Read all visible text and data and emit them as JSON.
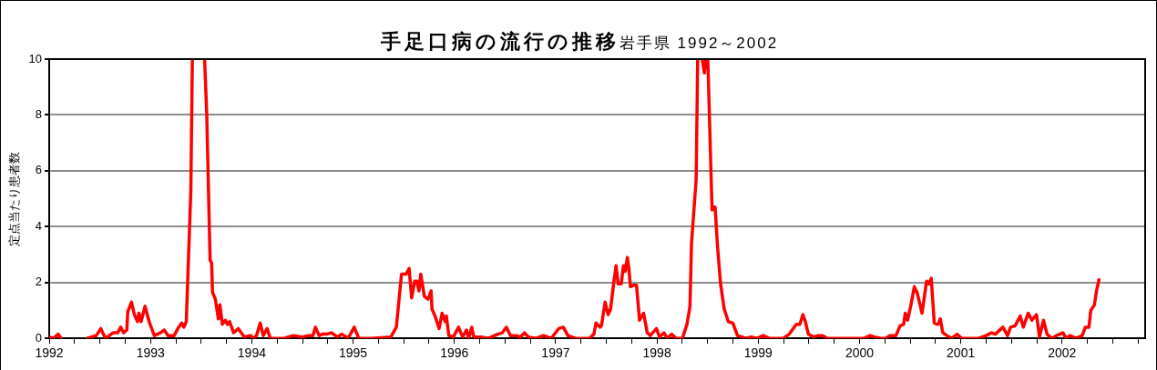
{
  "chart_data": {
    "type": "line",
    "title": "手足口病の流行の推移",
    "subtitle": "岩手県 1992～2002",
    "ylabel": "定点当たり患者数",
    "xlim": [
      1992,
      2002.82
    ],
    "xticks": [
      1992,
      {
        "value": 1992.25,
        "label": null
      },
      {
        "value": 1992.5,
        "label": null
      },
      {
        "value": 1992.75,
        "label": null
      },
      1993,
      {
        "value": 1993.25,
        "label": null
      },
      {
        "value": 1993.5,
        "label": null
      },
      {
        "value": 1993.75,
        "label": null
      },
      1994,
      {
        "value": 1994.25,
        "label": null
      },
      {
        "value": 1994.5,
        "label": null
      },
      {
        "value": 1994.75,
        "label": null
      },
      1995,
      {
        "value": 1995.25,
        "label": null
      },
      {
        "value": 1995.5,
        "label": null
      },
      {
        "value": 1995.75,
        "label": null
      },
      1996,
      {
        "value": 1996.25,
        "label": null
      },
      {
        "value": 1996.5,
        "label": null
      },
      {
        "value": 1996.75,
        "label": null
      },
      1997,
      {
        "value": 1997.25,
        "label": null
      },
      {
        "value": 1997.5,
        "label": null
      },
      {
        "value": 1997.75,
        "label": null
      },
      1998,
      {
        "value": 1998.25,
        "label": null
      },
      {
        "value": 1998.5,
        "label": null
      },
      {
        "value": 1998.75,
        "label": null
      },
      1999,
      {
        "value": 1999.25,
        "label": null
      },
      {
        "value": 1999.5,
        "label": null
      },
      {
        "value": 1999.75,
        "label": null
      },
      2000,
      {
        "value": 2000.25,
        "label": null
      },
      {
        "value": 2000.5,
        "label": null
      },
      {
        "value": 2000.75,
        "label": null
      },
      2001,
      {
        "value": 2001.25,
        "label": null
      },
      {
        "value": 2001.5,
        "label": null
      },
      {
        "value": 2001.75,
        "label": null
      },
      2002,
      {
        "value": 2002.25,
        "label": null
      },
      {
        "value": 2002.5,
        "label": null
      },
      {
        "value": 2002.75,
        "label": null
      }
    ],
    "ylim": [
      0,
      10
    ],
    "yticks": [
      0,
      2,
      4,
      6,
      8,
      10
    ],
    "grid": "y",
    "legend": false,
    "marker": "none",
    "line_style": "solid",
    "x": [
      1992.0,
      1992.042,
      1992.087,
      1992.118,
      1992.2,
      1992.374,
      1992.464,
      1992.509,
      1992.555,
      1992.63,
      1992.675,
      1992.705,
      1992.735,
      1992.766,
      1992.775,
      1992.811,
      1992.841,
      1992.871,
      1992.886,
      1992.907,
      1992.946,
      1992.986,
      1993.037,
      1993.097,
      1993.136,
      1993.172,
      1993.233,
      1993.278,
      1993.308,
      1993.329,
      1993.353,
      1993.398,
      1993.413,
      1993.45,
      1993.534,
      1993.555,
      1993.588,
      1993.603,
      1993.612,
      1993.64,
      1993.67,
      1993.685,
      1993.709,
      1993.739,
      1993.76,
      1993.781,
      1993.82,
      1993.866,
      1993.926,
      1993.986,
      1994.016,
      1994.046,
      1994.083,
      1994.113,
      1994.152,
      1994.182,
      1994.242,
      1994.318,
      1994.408,
      1994.498,
      1994.559,
      1994.604,
      1994.628,
      1994.664,
      1994.694,
      1994.74,
      1994.785,
      1994.845,
      1994.89,
      1994.951,
      1995.011,
      1995.056,
      1995.177,
      1995.373,
      1995.427,
      1995.478,
      1995.523,
      1995.553,
      1995.578,
      1995.608,
      1995.629,
      1995.65,
      1995.668,
      1995.704,
      1995.74,
      1995.77,
      1995.779,
      1995.809,
      1995.849,
      1995.879,
      1995.909,
      1995.921,
      1995.945,
      1995.99,
      1996.041,
      1996.081,
      1996.12,
      1996.141,
      1996.171,
      1996.192,
      1996.262,
      1996.337,
      1996.428,
      1996.473,
      1996.513,
      1996.554,
      1996.608,
      1996.653,
      1996.693,
      1996.729,
      1996.804,
      1996.88,
      1996.955,
      1997.03,
      1997.075,
      1997.121,
      1997.196,
      1997.332,
      1997.377,
      1997.398,
      1997.437,
      1997.452,
      1997.488,
      1997.518,
      1997.542,
      1997.572,
      1997.596,
      1997.617,
      1997.647,
      1997.669,
      1997.687,
      1997.708,
      1997.723,
      1997.738,
      1997.768,
      1997.798,
      1997.828,
      1997.868,
      1997.904,
      1997.934,
      1997.995,
      1998.025,
      1998.07,
      1998.1,
      1998.145,
      1998.191,
      1998.251,
      1998.296,
      1998.326,
      1998.341,
      1998.387,
      1998.402,
      1998.42,
      1998.447,
      1998.468,
      1998.484,
      1998.49,
      1998.502,
      1998.544,
      1998.559,
      1998.574,
      1998.598,
      1998.628,
      1998.664,
      1998.704,
      1998.749,
      1998.795,
      1998.84,
      1998.87,
      1998.93,
      1998.99,
      1999.049,
      1999.11,
      1999.17,
      1999.245,
      1999.306,
      1999.375,
      1999.411,
      1999.441,
      1999.465,
      1999.495,
      1999.547,
      1999.591,
      1999.637,
      1999.682,
      1999.773,
      1999.863,
      1999.954,
      2000.044,
      2000.104,
      2000.149,
      2000.21,
      2000.255,
      2000.3,
      2000.36,
      2000.4,
      2000.436,
      2000.451,
      2000.475,
      2000.505,
      2000.541,
      2000.572,
      2000.617,
      2000.662,
      2000.686,
      2000.708,
      2000.738,
      2000.774,
      2000.798,
      2000.822,
      2000.864,
      2000.909,
      2000.963,
      2001.008,
      2001.098,
      2001.175,
      2001.25,
      2001.304,
      2001.34,
      2001.416,
      2001.461,
      2001.491,
      2001.536,
      2001.587,
      2001.617,
      2001.665,
      2001.702,
      2001.747,
      2001.777,
      2001.816,
      2001.852,
      2001.898,
      2001.943,
      2002.009,
      2002.039,
      2002.078,
      2002.139,
      2002.199,
      2002.229,
      2002.265,
      2002.283,
      2002.319,
      2002.34,
      2002.364
    ],
    "series": [
      {
        "color": "#ff0000",
        "values": [
          0.05,
          0,
          0.15,
          0,
          null,
          0,
          0.1,
          0.35,
          0,
          0.2,
          0.2,
          0.4,
          0.2,
          0.3,
          0.95,
          1.3,
          0.85,
          0.6,
          0.9,
          0.6,
          1.15,
          0.6,
          0.1,
          0.2,
          0.3,
          0.1,
          0.1,
          0.4,
          0.55,
          0.4,
          0.6,
          5.3,
          10,
          null,
          10,
          8.0,
          2.8,
          2.7,
          1.65,
          1.4,
          0.7,
          1.2,
          0.5,
          0.65,
          0.5,
          0.6,
          0.2,
          0.35,
          0.05,
          0.1,
          0,
          0.1,
          0.55,
          0.1,
          0.35,
          0,
          0,
          0,
          0.1,
          0.05,
          0.1,
          0.1,
          0.4,
          0.1,
          0.15,
          0.15,
          0.2,
          0.05,
          0.15,
          0,
          0.4,
          0,
          0,
          0.05,
          0.4,
          2.3,
          2.3,
          2.5,
          1.45,
          2.05,
          2.05,
          1.7,
          2.3,
          1.5,
          1.4,
          1.7,
          1.05,
          0.8,
          0.35,
          0.9,
          0.6,
          0.8,
          0.1,
          0.05,
          0.4,
          0.05,
          0.3,
          0,
          0.4,
          0.05,
          0.05,
          0,
          0.15,
          0.2,
          0.4,
          0.1,
          0.1,
          0.05,
          0.2,
          0.05,
          0,
          0.1,
          0,
          0.35,
          0.4,
          0.1,
          0,
          0,
          0.15,
          0.55,
          0.4,
          0.45,
          1.3,
          0.85,
          1.05,
          1.95,
          2.6,
          1.95,
          1.95,
          2.6,
          2.4,
          2.9,
          2.5,
          1.85,
          1.9,
          1.9,
          0.65,
          0.9,
          0.2,
          0.1,
          0.35,
          0.05,
          0.2,
          0,
          0.15,
          0,
          0,
          0.5,
          1.15,
          3.4,
          5.7,
          10,
          null,
          10,
          9.5,
          10,
          null,
          10,
          4.6,
          4.7,
          4.7,
          3.3,
          1.95,
          1.05,
          0.6,
          0.55,
          0.1,
          0.05,
          0,
          0.05,
          0,
          0.1,
          0,
          0,
          0,
          0.15,
          0.5,
          0.5,
          0.85,
          0.6,
          0.15,
          0.05,
          0.1,
          0.1,
          0,
          0,
          0,
          0,
          0,
          0.1,
          0.05,
          0,
          0,
          0.1,
          0.1,
          0.45,
          0.5,
          0.9,
          0.65,
          1.15,
          1.85,
          1.6,
          0.9,
          2.05,
          1.95,
          2.15,
          0.55,
          0.5,
          0.7,
          0.2,
          0.1,
          0,
          0.15,
          0,
          0,
          0,
          0.1,
          0.2,
          0.15,
          0.4,
          0.1,
          0.4,
          0.45,
          0.8,
          0.4,
          0.9,
          0.65,
          0.85,
          0.05,
          0.65,
          0.15,
          0,
          0.1,
          0.2,
          0,
          0.1,
          0,
          0.1,
          0.4,
          0.4,
          1.0,
          1.2,
          1.7,
          2.1
        ]
      }
    ]
  }
}
